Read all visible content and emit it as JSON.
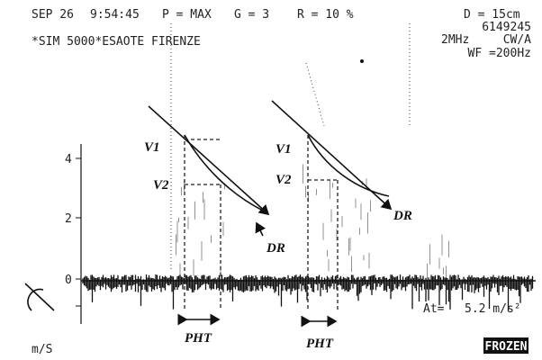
{
  "header": {
    "date": "SEP 26",
    "time": "9:54:45",
    "power": "P = MAX",
    "gain": "G = 3",
    "reject": "R = 10 %",
    "depth": "D = 15cm",
    "id": "6149245",
    "system": "*SIM 5000*ESAOTE FIRENZE",
    "frequency": "2MHz",
    "mode": "CW/A",
    "filter": "WF =200Hz"
  },
  "scale": {
    "ticks": [
      "4",
      "2",
      "0"
    ],
    "unit": "m/S"
  },
  "annotations": {
    "beat_1": {
      "v1": "V1",
      "v2": "V2",
      "dr": "DR",
      "pht": "PHT"
    },
    "beat_2": {
      "v1": "V1",
      "v2": "V2",
      "dr": "DR",
      "pht": "PHT"
    }
  },
  "measurement": {
    "label": "At=",
    "value": "5.2 m/s²"
  },
  "status": "FROZEN"
}
